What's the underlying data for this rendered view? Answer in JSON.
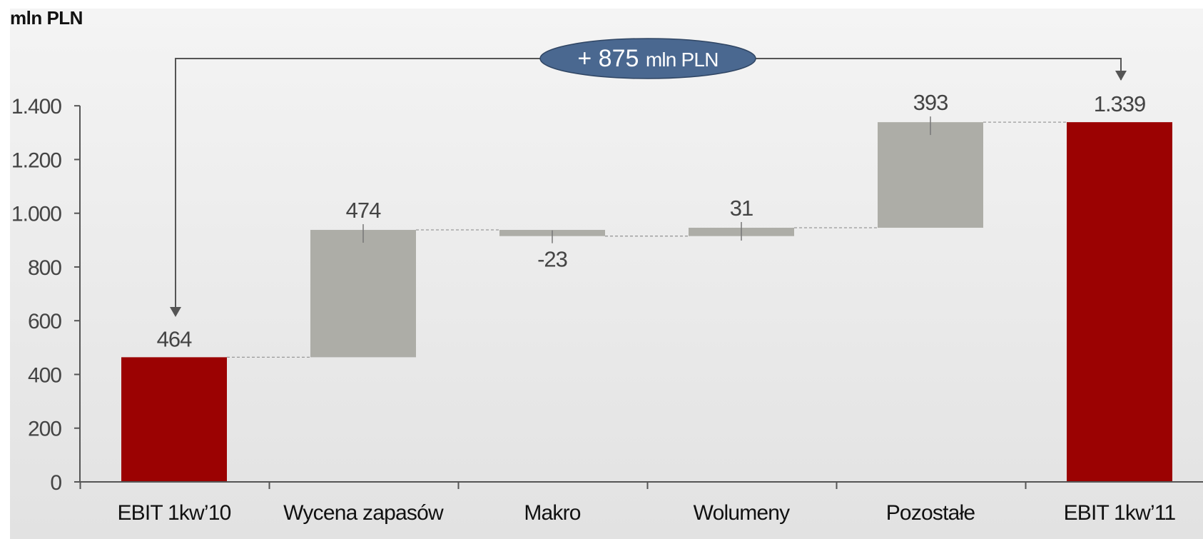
{
  "unit_label": "mln PLN",
  "annotation": {
    "text_big": "+ 875",
    "text_small": "mln PLN",
    "fill": "#4a6890",
    "text_color": "#ffffff"
  },
  "colors": {
    "total_bar": "#9b0202",
    "delta_bar": "#adada7",
    "axis": "#555555",
    "text": "#444444",
    "connector": "#999999",
    "bg_top": "#f4f4f4",
    "bg_bottom": "#e2e2e2"
  },
  "chart_data": {
    "type": "waterfall",
    "categories": [
      "EBIT 1kw’10",
      "Wycena zapasów",
      "Makro",
      "Wolumeny",
      "Pozostałe",
      "EBIT 1kw’11"
    ],
    "values": [
      464,
      474,
      -23,
      31,
      393,
      1339
    ],
    "value_labels": [
      "464",
      "474",
      "-23",
      "31",
      "393",
      "1.339"
    ],
    "kinds": [
      "total",
      "delta",
      "delta",
      "delta",
      "delta",
      "total"
    ],
    "y_ticks": [
      0,
      200,
      400,
      600,
      800,
      1000,
      1200,
      1400
    ],
    "y_tick_labels": [
      "0",
      "200",
      "400",
      "600",
      "800",
      "1.000",
      "1.200",
      "1.400"
    ],
    "ylim": [
      0,
      1400
    ],
    "grid": false,
    "legend": "none"
  }
}
